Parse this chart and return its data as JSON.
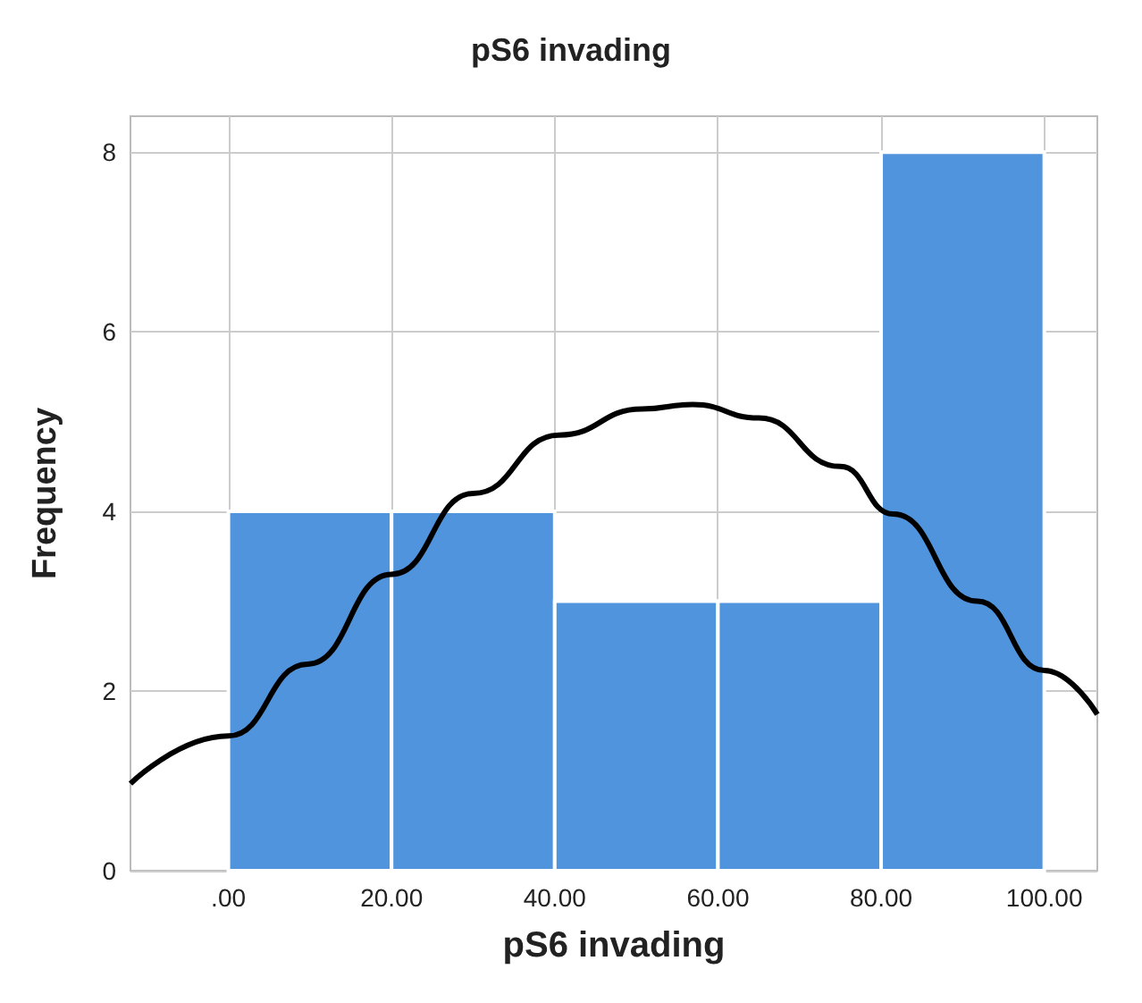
{
  "chart_data": {
    "type": "histogram",
    "title": "pS6 invading",
    "xlabel": "pS6 invading",
    "ylabel": "Frequency",
    "bins": [
      0,
      20,
      40,
      60,
      80,
      100
    ],
    "values": [
      4,
      4,
      3,
      3,
      8
    ],
    "color": "#5194de",
    "series": [
      {
        "type": "line",
        "color": "#000000",
        "x": [
          -12,
          0,
          9.7,
          20,
          30,
          40.5,
          50.7,
          56.9,
          65,
          75,
          81.5,
          91.8,
          100,
          106.5
        ],
        "values": [
          0.97,
          1.5,
          2.3,
          3.3,
          4.2,
          4.85,
          5.14,
          5.19,
          5.04,
          4.5,
          3.97,
          3.0,
          2.23,
          1.74
        ]
      }
    ],
    "xlim": [
      -12,
      106.5
    ],
    "ylim": [
      0,
      8.4
    ],
    "xticks": [
      {
        "value": 0,
        "label": ".00"
      },
      {
        "value": 20,
        "label": "20.00"
      },
      {
        "value": 40,
        "label": "40.00"
      },
      {
        "value": 60,
        "label": "60.00"
      },
      {
        "value": 80,
        "label": "80.00"
      },
      {
        "value": 100,
        "label": "100.00"
      }
    ],
    "yticks": [
      0,
      2,
      4,
      6,
      8
    ],
    "grid": true
  }
}
